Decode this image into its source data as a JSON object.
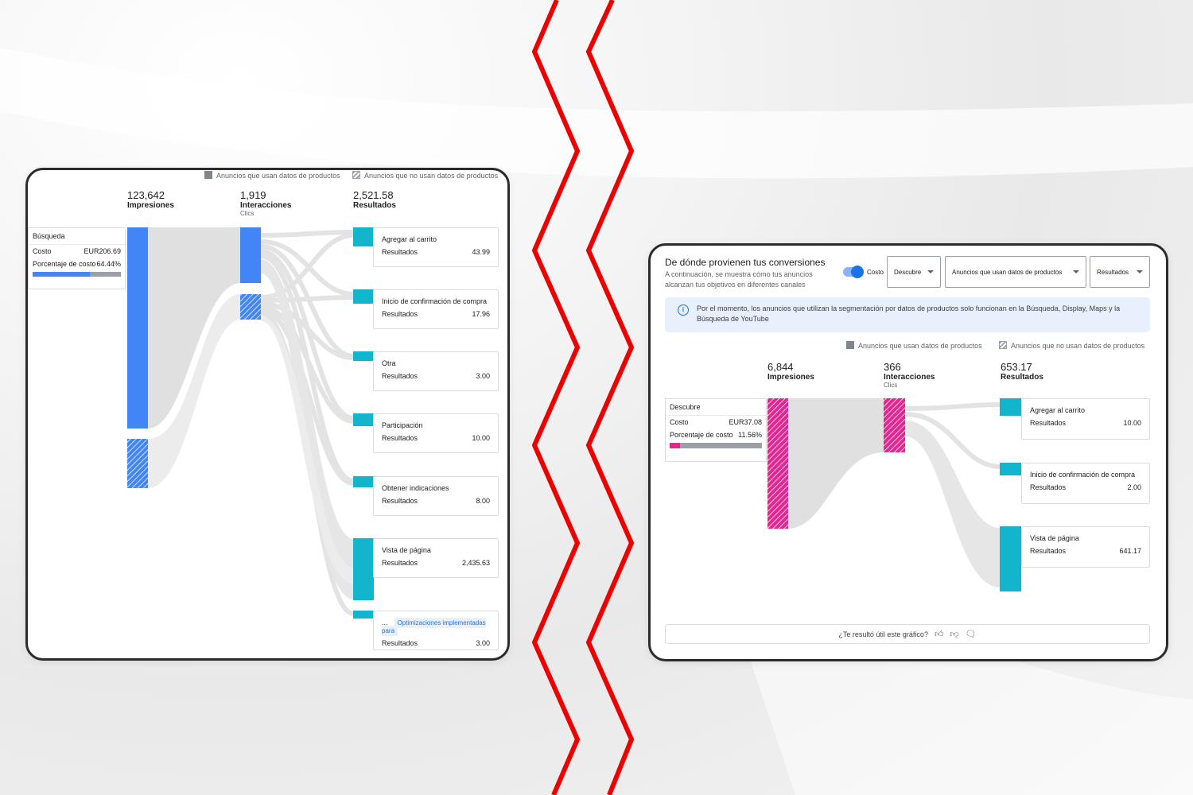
{
  "left_panel": {
    "legend": {
      "with_product_data": "Anuncios que usan datos de productos",
      "without_product_data": "Anuncios que no usan datos de productos"
    },
    "metrics": {
      "impressions": {
        "value": "123,642",
        "label": "Impresiones"
      },
      "interactions": {
        "value": "1,919",
        "label": "Interacciones",
        "sub": "Clics"
      },
      "results": {
        "value": "2,521.58",
        "label": "Resultados"
      }
    },
    "source": {
      "name": "Búsqueda",
      "cost_label": "Costo",
      "cost_value": "EUR206.69",
      "share_label": "Porcentaje de costo",
      "share_value": "64.44%",
      "share_fraction": 0.6444,
      "bar_color": "#4285f4"
    },
    "conversions": [
      {
        "name": "Agregar al carrito",
        "results_label": "Resultados",
        "value": "43.99"
      },
      {
        "name": "Inicio de confirmación de compra",
        "results_label": "Resultados",
        "value": "17.96"
      },
      {
        "name": "Otra",
        "results_label": "Resultados",
        "value": "3.00"
      },
      {
        "name": "Participación",
        "results_label": "Resultados",
        "value": "10.00"
      },
      {
        "name": "Obtener indicaciones",
        "results_label": "Resultados",
        "value": "8.00"
      },
      {
        "name": "Vista de página",
        "results_label": "Resultados",
        "value": "2,435.63"
      },
      {
        "name": "...",
        "badge": "Optimizaciones implementadas para",
        "results_label": "Resultados",
        "value": "3.00"
      }
    ]
  },
  "right_panel": {
    "title": "De dónde provienen tus conversiones",
    "subtitle": "A continuación, se muestra cómo tus anuncios alcanzan tus objetivos en diferentes canales",
    "toggle_label": "Costo",
    "toggle_on": true,
    "dropdowns": {
      "channel": "Descubre",
      "product_data": "Anuncios que usan datos de productos",
      "metric": "Resultados"
    },
    "info_text": "Por el momento, los anuncios que utilizan la segmentación por datos de productos solo funcionan en la Búsqueda, Display, Maps y la Búsqueda de YouTube",
    "legend": {
      "with_product_data": "Anuncios que usan datos de productos",
      "without_product_data": "Anuncios que no usan datos de productos"
    },
    "metrics": {
      "impressions": {
        "value": "6,844",
        "label": "Impresiones"
      },
      "interactions": {
        "value": "366",
        "label": "Interacciones",
        "sub": "Clics"
      },
      "results": {
        "value": "653.17",
        "label": "Resultados"
      }
    },
    "source": {
      "name": "Descubre",
      "cost_label": "Costo",
      "cost_value": "EUR37.08",
      "share_label": "Porcentaje de costo",
      "share_value": "11.56%",
      "share_fraction": 0.1156,
      "bar_color": "#e52592"
    },
    "conversions": [
      {
        "name": "Agregar al carrito",
        "results_label": "Resultados",
        "value": "10.00"
      },
      {
        "name": "Inicio de confirmación de compra",
        "results_label": "Resultados",
        "value": "2.00"
      },
      {
        "name": "Vista de página",
        "results_label": "Resultados",
        "value": "641.17"
      }
    ],
    "feedback_question": "¿Te resultó útil este gráfico?"
  },
  "colors": {
    "blue": "#4285f4",
    "pink": "#e52592",
    "teal": "#12b5cb",
    "flow": "#e0e0e0",
    "divider_red": "#ee0000"
  }
}
